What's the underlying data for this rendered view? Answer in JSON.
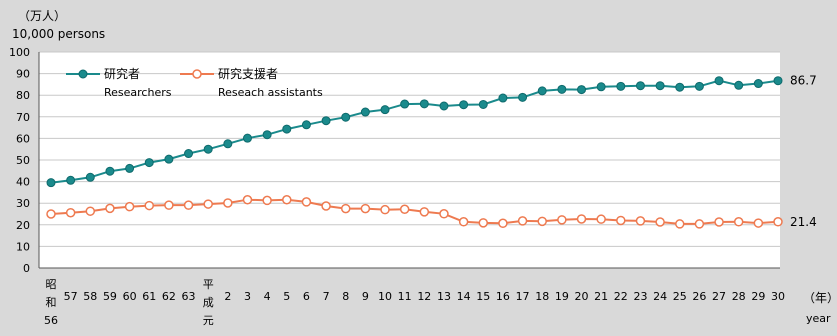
{
  "chart_data": {
    "type": "line",
    "y_unit_label": "（万人）",
    "y_unit_label_en": "10,000 persons",
    "x_unit_label": "（年）",
    "x_unit_label_en": "year",
    "ylim": [
      0,
      100
    ],
    "y_ticks": [
      0,
      10,
      20,
      30,
      40,
      50,
      60,
      70,
      80,
      90,
      100
    ],
    "grid": "horizontal",
    "legend_position": "top-left",
    "categories": [
      [
        "昭",
        "和",
        "56"
      ],
      [
        "57"
      ],
      [
        "58"
      ],
      [
        "59"
      ],
      [
        "60"
      ],
      [
        "61"
      ],
      [
        "62"
      ],
      [
        "63"
      ],
      [
        "平",
        "成",
        "元"
      ],
      [
        "2"
      ],
      [
        "3"
      ],
      [
        "4"
      ],
      [
        "5"
      ],
      [
        "6"
      ],
      [
        "7"
      ],
      [
        "8"
      ],
      [
        "9"
      ],
      [
        "10"
      ],
      [
        "11"
      ],
      [
        "12"
      ],
      [
        "13"
      ],
      [
        "14"
      ],
      [
        "15"
      ],
      [
        "16"
      ],
      [
        "17"
      ],
      [
        "18"
      ],
      [
        "19"
      ],
      [
        "20"
      ],
      [
        "21"
      ],
      [
        "22"
      ],
      [
        "23"
      ],
      [
        "24"
      ],
      [
        "25"
      ],
      [
        "26"
      ],
      [
        "27"
      ],
      [
        "28"
      ],
      [
        "29"
      ],
      [
        "30"
      ]
    ],
    "series": [
      {
        "name": "研究者",
        "name_en": "Researchers",
        "color": "#1a8a8c",
        "end_label": "86.7",
        "values": [
          39.5,
          40.6,
          42.0,
          44.8,
          46.1,
          48.8,
          50.4,
          53.0,
          55.0,
          57.5,
          60.1,
          61.7,
          64.3,
          66.3,
          68.2,
          69.8,
          72.2,
          73.3,
          75.9,
          76.0,
          75.0,
          75.6,
          75.7,
          78.7,
          79.0,
          82.0,
          82.7,
          82.6,
          83.9,
          84.1,
          84.4,
          84.4,
          83.7,
          84.1,
          86.7,
          84.6,
          85.4,
          86.7
        ]
      },
      {
        "name": "研究支援者",
        "name_en": "Reseach assistants",
        "color": "#ee7a50",
        "end_label": "21.4",
        "values": [
          25.0,
          25.6,
          26.3,
          27.6,
          28.4,
          28.9,
          29.1,
          29.1,
          29.6,
          30.1,
          31.6,
          31.3,
          31.6,
          30.6,
          28.7,
          27.5,
          27.5,
          27.0,
          27.2,
          26.0,
          25.1,
          21.4,
          20.9,
          20.7,
          21.8,
          21.6,
          22.3,
          22.7,
          22.6,
          22.0,
          21.8,
          21.3,
          20.4,
          20.4,
          21.3,
          21.4,
          20.8,
          21.4
        ]
      }
    ]
  }
}
